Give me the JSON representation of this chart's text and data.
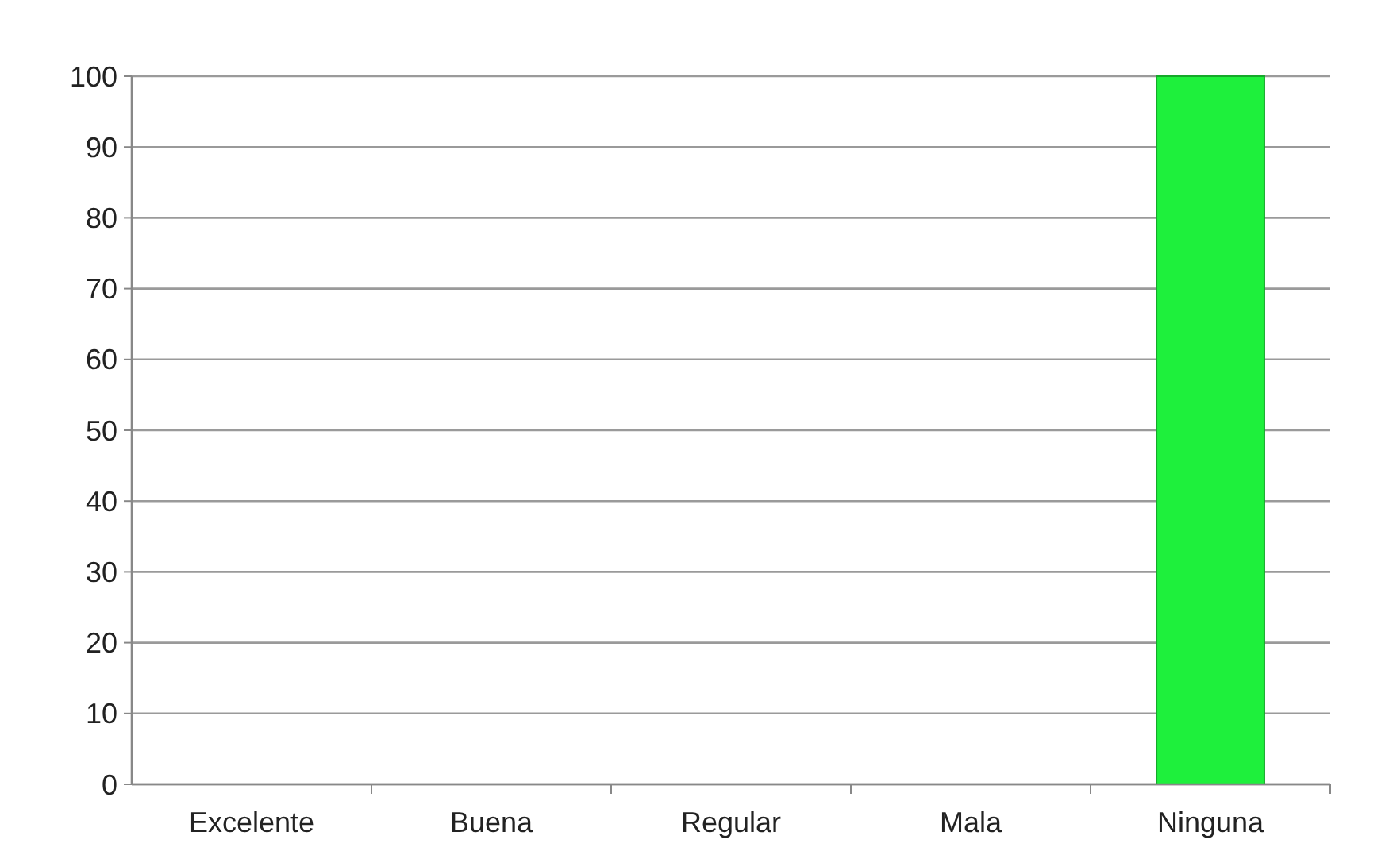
{
  "chart_data": {
    "type": "bar",
    "categories": [
      "Excelente",
      "Buena",
      "Regular",
      "Mala",
      "Ninguna"
    ],
    "values": [
      0,
      0,
      0,
      0,
      100
    ],
    "color": "#1ef03c",
    "ylim": [
      0,
      100
    ],
    "yticks": [
      0,
      10,
      20,
      30,
      40,
      50,
      60,
      70,
      80,
      90,
      100
    ],
    "grid": "y"
  }
}
